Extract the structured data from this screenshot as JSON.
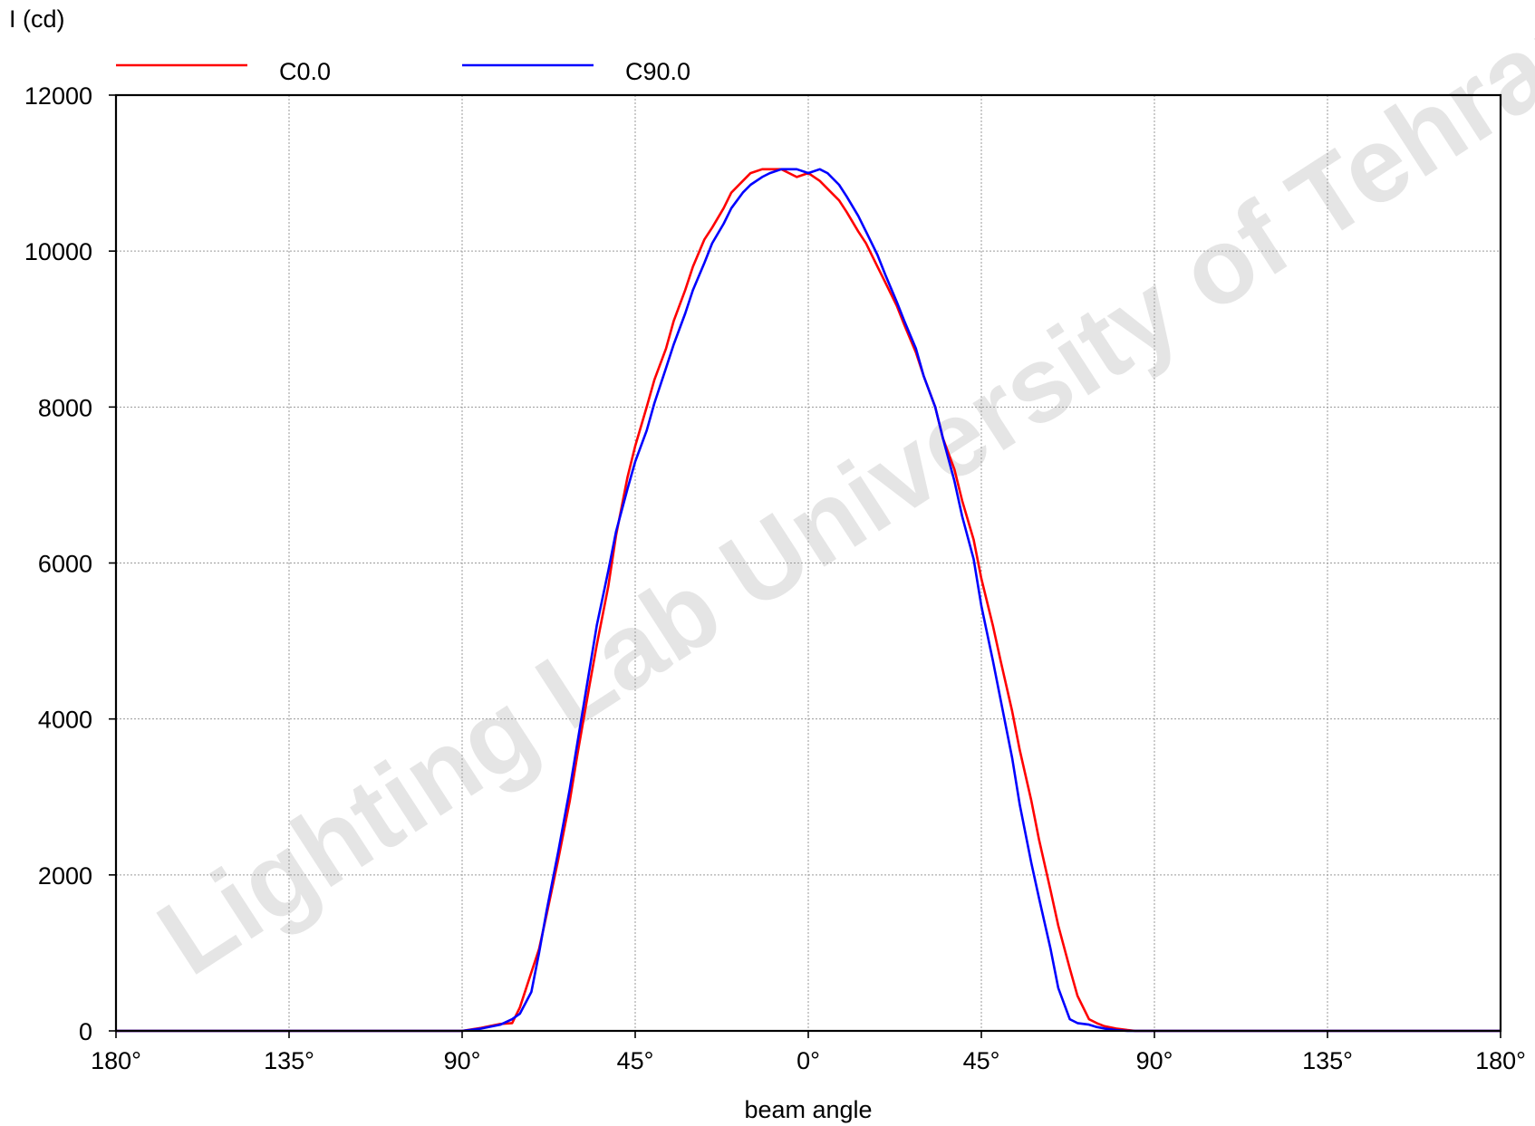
{
  "chart_data": {
    "type": "line",
    "ylabel": "I (cd)",
    "xlabel": "beam angle",
    "ylim": [
      0,
      12000
    ],
    "xlim": [
      -180,
      180
    ],
    "y_ticks": [
      0,
      2000,
      4000,
      6000,
      8000,
      10000,
      12000
    ],
    "y_tick_labels": [
      "0",
      "2000",
      "4000",
      "6000",
      "8000",
      "10000",
      "12000"
    ],
    "x_ticks": [
      -180,
      -135,
      -90,
      -45,
      0,
      45,
      90,
      135,
      180
    ],
    "x_tick_labels": [
      "180°",
      "135°",
      "90°",
      "45°",
      "0°",
      "45°",
      "90°",
      "135°",
      "180°"
    ],
    "grid": true,
    "legend_position": "top",
    "watermark": "Lighting Lab University of Tehran - Aza",
    "series": [
      {
        "name": "C0.0",
        "color": "#ff0000",
        "x": [
          -180,
          -100,
          -90,
          -85,
          -80,
          -77,
          -75,
          -72,
          -70,
          -68,
          -65,
          -62,
          -60,
          -57,
          -55,
          -52,
          -50,
          -47,
          -45,
          -42,
          -40,
          -37,
          -35,
          -32,
          -30,
          -27,
          -25,
          -22,
          -20,
          -17,
          -15,
          -12,
          -10,
          -7,
          -5,
          -3,
          0,
          3,
          5,
          8,
          10,
          13,
          15,
          18,
          20,
          23,
          25,
          28,
          30,
          33,
          35,
          38,
          40,
          43,
          45,
          48,
          50,
          53,
          55,
          58,
          60,
          63,
          65,
          68,
          70,
          73,
          75,
          77,
          80,
          83,
          85,
          88,
          90,
          100,
          180
        ],
        "y": [
          0,
          0,
          0,
          40,
          90,
          100,
          300,
          750,
          1050,
          1500,
          2200,
          2950,
          3550,
          4400,
          4950,
          5700,
          6350,
          7100,
          7500,
          8000,
          8350,
          8750,
          9100,
          9500,
          9800,
          10150,
          10300,
          10550,
          10750,
          10900,
          11000,
          11050,
          11050,
          11050,
          11000,
          10950,
          11000,
          10900,
          10800,
          10650,
          10500,
          10250,
          10100,
          9800,
          9600,
          9300,
          9050,
          8700,
          8400,
          8000,
          7600,
          7200,
          6800,
          6300,
          5800,
          5200,
          4750,
          4100,
          3600,
          2950,
          2450,
          1800,
          1350,
          800,
          450,
          150,
          100,
          60,
          30,
          10,
          0,
          0,
          0,
          0,
          0
        ]
      },
      {
        "name": "C90.0",
        "color": "#0000ff",
        "x": [
          -180,
          -100,
          -90,
          -85,
          -80,
          -77,
          -75,
          -72,
          -70,
          -68,
          -65,
          -62,
          -60,
          -57,
          -55,
          -52,
          -50,
          -47,
          -45,
          -42,
          -40,
          -37,
          -35,
          -32,
          -30,
          -27,
          -25,
          -22,
          -20,
          -17,
          -15,
          -12,
          -10,
          -7,
          -5,
          -3,
          0,
          3,
          5,
          8,
          10,
          13,
          15,
          18,
          20,
          23,
          25,
          28,
          30,
          33,
          35,
          38,
          40,
          43,
          45,
          48,
          50,
          53,
          55,
          58,
          60,
          63,
          65,
          68,
          70,
          73,
          75,
          77,
          80,
          83,
          85,
          88,
          90,
          100,
          180
        ],
        "y": [
          0,
          0,
          0,
          30,
          80,
          150,
          220,
          500,
          1000,
          1550,
          2300,
          3100,
          3700,
          4600,
          5200,
          5900,
          6400,
          6950,
          7300,
          7700,
          8050,
          8500,
          8800,
          9200,
          9500,
          9850,
          10100,
          10350,
          10550,
          10750,
          10850,
          10950,
          11000,
          11050,
          11050,
          11050,
          11000,
          11050,
          11000,
          10850,
          10700,
          10450,
          10250,
          9950,
          9700,
          9350,
          9100,
          8750,
          8400,
          8000,
          7600,
          7050,
          6600,
          6050,
          5450,
          4750,
          4250,
          3500,
          2900,
          2150,
          1700,
          1050,
          550,
          150,
          100,
          80,
          50,
          30,
          10,
          0,
          0,
          0,
          0,
          0,
          0
        ]
      }
    ]
  }
}
